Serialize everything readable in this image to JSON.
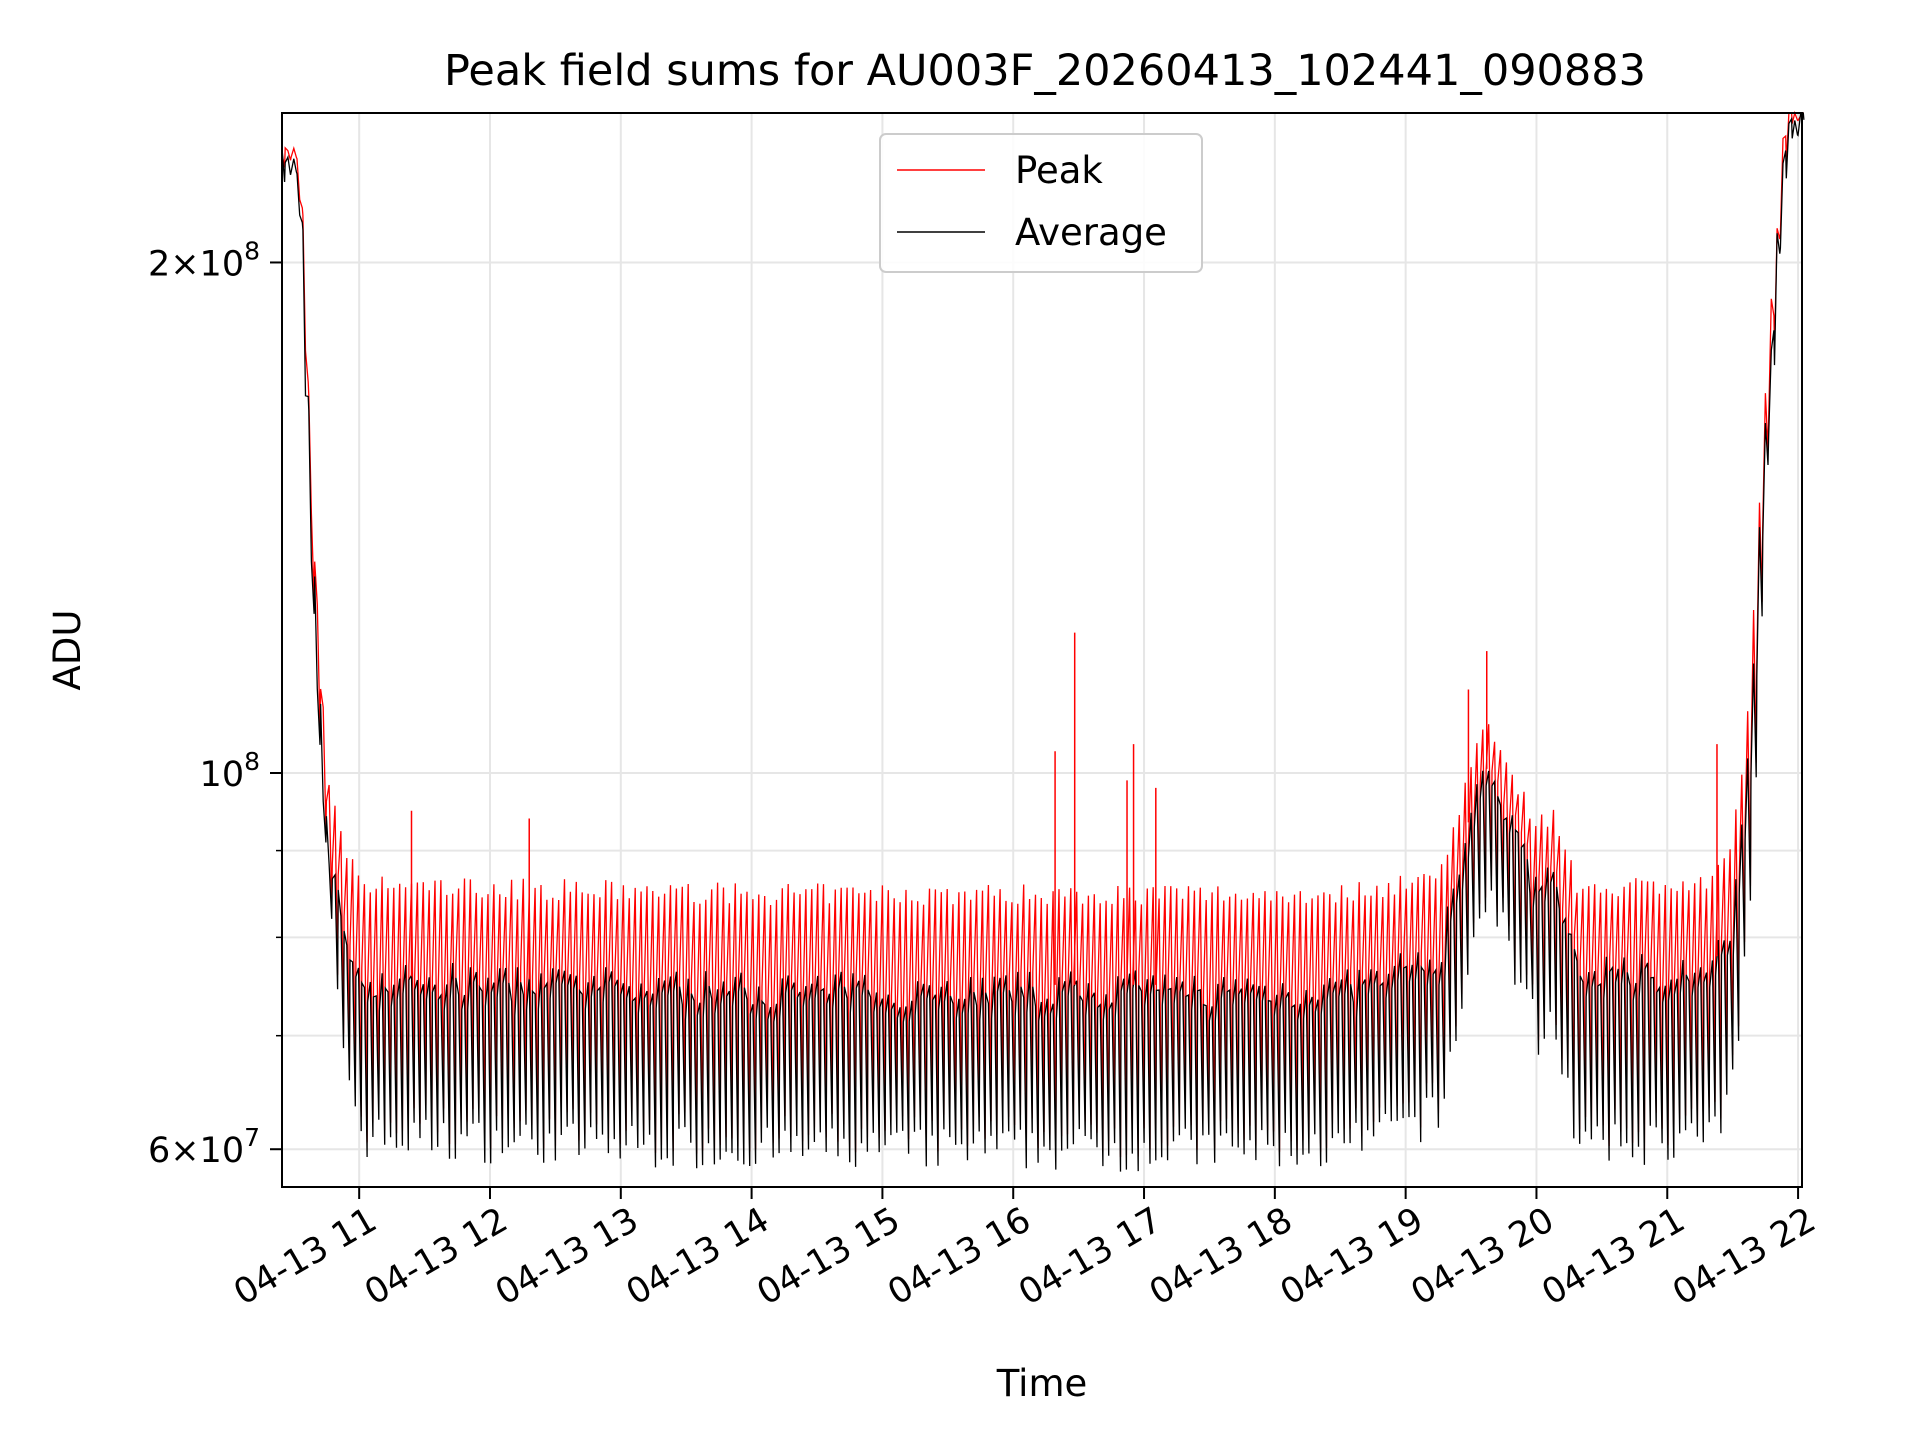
{
  "chart_data": {
    "type": "line",
    "title": "Peak field sums for AU003F_20260413_102441_090883",
    "xlabel": "Time",
    "ylabel": "ADU",
    "yscale": "log",
    "ylim": [
      57000000,
      245000000
    ],
    "xlim_hours": [
      10.41,
      22.03
    ],
    "grid": true,
    "legend_position": "upper center",
    "x_ticks": [
      {
        "hour": 11,
        "label": "04-13 11"
      },
      {
        "hour": 12,
        "label": "04-13 12"
      },
      {
        "hour": 13,
        "label": "04-13 13"
      },
      {
        "hour": 14,
        "label": "04-13 14"
      },
      {
        "hour": 15,
        "label": "04-13 15"
      },
      {
        "hour": 16,
        "label": "04-13 16"
      },
      {
        "hour": 17,
        "label": "04-13 17"
      },
      {
        "hour": 18,
        "label": "04-13 18"
      },
      {
        "hour": 19,
        "label": "04-13 19"
      },
      {
        "hour": 20,
        "label": "04-13 20"
      },
      {
        "hour": 21,
        "label": "04-13 21"
      },
      {
        "hour": 22,
        "label": "04-13 22"
      }
    ],
    "y_ticks_major": [
      {
        "value": 60000000,
        "mantissa": "6",
        "exponent": "7"
      },
      {
        "value": 100000000,
        "mantissa": "",
        "exponent": "8"
      },
      {
        "value": 200000000,
        "mantissa": "2",
        "exponent": "8"
      }
    ],
    "y_ticks_minor": [
      70000000,
      80000000,
      90000000
    ],
    "period_hours": 0.045,
    "envelope": [
      {
        "hour": 10.41,
        "peak": 231000000,
        "avg": 230000000,
        "low": 230000000
      },
      {
        "hour": 10.53,
        "peak": 229000000,
        "avg": 228000000,
        "low": 228000000
      },
      {
        "hour": 10.58,
        "peak": 185000000,
        "avg": 180000000,
        "low": 175000000
      },
      {
        "hour": 10.63,
        "peak": 145000000,
        "avg": 135000000,
        "low": 125000000
      },
      {
        "hour": 10.7,
        "peak": 115000000,
        "avg": 105000000,
        "low": 95000000
      },
      {
        "hour": 10.77,
        "peak": 97000000,
        "avg": 88000000,
        "low": 80000000
      },
      {
        "hour": 10.85,
        "peak": 91000000,
        "avg": 84000000,
        "low": 70000000
      },
      {
        "hour": 11.0,
        "peak": 85000000,
        "avg": 76000000,
        "low": 61000000
      },
      {
        "hour": 14.0,
        "peak": 84000000,
        "avg": 75000000,
        "low": 60000000
      },
      {
        "hour": 18.5,
        "peak": 84000000,
        "avg": 75000000,
        "low": 60000000
      },
      {
        "hour": 19.25,
        "peak": 86000000,
        "avg": 78000000,
        "low": 63000000
      },
      {
        "hour": 19.5,
        "peak": 100000000,
        "avg": 95000000,
        "low": 80000000
      },
      {
        "hour": 19.65,
        "peak": 106000000,
        "avg": 102000000,
        "low": 85000000
      },
      {
        "hour": 19.85,
        "peak": 98000000,
        "avg": 92000000,
        "low": 75000000
      },
      {
        "hour": 20.0,
        "peak": 92000000,
        "avg": 85000000,
        "low": 70000000
      },
      {
        "hour": 20.12,
        "peak": 94000000,
        "avg": 88000000,
        "low": 72000000
      },
      {
        "hour": 20.3,
        "peak": 85000000,
        "avg": 77000000,
        "low": 60000000
      },
      {
        "hour": 21.35,
        "peak": 85000000,
        "avg": 77000000,
        "low": 61000000
      },
      {
        "hour": 21.5,
        "peak": 90000000,
        "avg": 82000000,
        "low": 66000000
      },
      {
        "hour": 21.63,
        "peak": 110000000,
        "avg": 104000000,
        "low": 88000000
      },
      {
        "hour": 21.7,
        "peak": 140000000,
        "avg": 135000000,
        "low": 125000000
      },
      {
        "hour": 21.78,
        "peak": 180000000,
        "avg": 175000000,
        "low": 170000000
      },
      {
        "hour": 21.9,
        "peak": 245000000,
        "avg": 245000000,
        "low": 245000000
      },
      {
        "hour": 22.03,
        "peak": 245000000,
        "avg": 245000000,
        "low": 245000000
      }
    ],
    "spikes": [
      {
        "hour": 16.32,
        "value": 103000000
      },
      {
        "hour": 16.47,
        "value": 121000000
      },
      {
        "hour": 16.87,
        "value": 99000000
      },
      {
        "hour": 16.92,
        "value": 104000000
      },
      {
        "hour": 17.09,
        "value": 98000000
      },
      {
        "hour": 19.48,
        "value": 112000000
      },
      {
        "hour": 19.62,
        "value": 118000000
      },
      {
        "hour": 21.38,
        "value": 104000000
      },
      {
        "hour": 11.4,
        "value": 95000000
      },
      {
        "hour": 12.3,
        "value": 94000000
      }
    ],
    "series": [
      {
        "name": "Peak",
        "color": "#ff0000"
      },
      {
        "name": "Average",
        "color": "#000000"
      }
    ]
  }
}
